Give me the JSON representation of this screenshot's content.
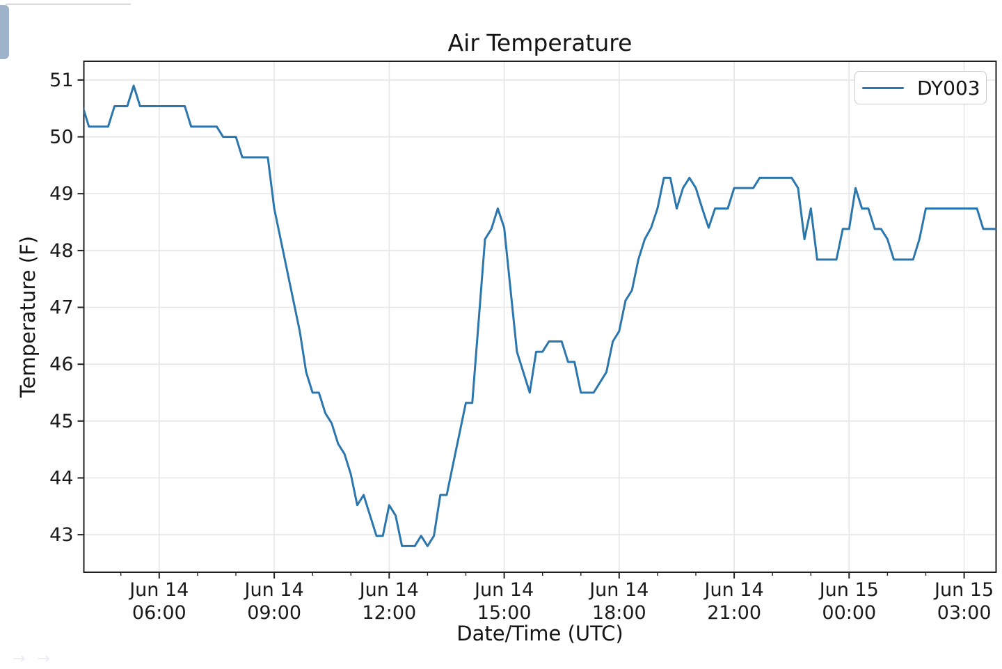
{
  "page": {
    "artifacts": {
      "faint_arrows": "→ →"
    }
  },
  "chart_data": {
    "type": "line",
    "title": "Air Temperature",
    "xlabel": "Date/Time (UTC)",
    "ylabel": "Temperature (F)",
    "grid": true,
    "legend": {
      "position": "upper right"
    },
    "colors": {
      "line": "#2b76ad",
      "grid": "#e6e6e6",
      "spine": "#1f1f1f",
      "text": "#1a1a1a",
      "corner_tab": "#9eb3ca"
    },
    "ylim": [
      42.34,
      51.33
    ],
    "y_ticks": [
      43,
      44,
      45,
      46,
      47,
      48,
      49,
      50,
      51
    ],
    "x_axis": {
      "range_minutes": [
        2,
        1430
      ],
      "minor_tick_every_minutes": 60,
      "ticks": [
        {
          "minute": 120,
          "line1": "Jun 14",
          "line2": "06:00"
        },
        {
          "minute": 300,
          "line1": "Jun 14",
          "line2": "09:00"
        },
        {
          "minute": 480,
          "line1": "Jun 14",
          "line2": "12:00"
        },
        {
          "minute": 660,
          "line1": "Jun 14",
          "line2": "15:00"
        },
        {
          "minute": 840,
          "line1": "Jun 14",
          "line2": "18:00"
        },
        {
          "minute": 1020,
          "line1": "Jun 14",
          "line2": "21:00"
        },
        {
          "minute": 1200,
          "line1": "Jun 15",
          "line2": "00:00"
        },
        {
          "minute": 1380,
          "line1": "Jun 15",
          "line2": "03:00"
        }
      ]
    },
    "series": [
      {
        "name": "DY003",
        "color": "#2b76ad",
        "x_start_label": "Jun 14 04:00 UTC",
        "start_minute": 0,
        "interval_minutes": 10,
        "values": [
          50.54,
          50.18,
          50.18,
          50.18,
          50.18,
          50.54,
          50.54,
          50.54,
          50.9,
          50.54,
          50.54,
          50.54,
          50.54,
          50.54,
          50.54,
          50.54,
          50.54,
          50.18,
          50.18,
          50.18,
          50.18,
          50.18,
          50.0,
          50.0,
          50.0,
          49.64,
          49.64,
          49.64,
          49.64,
          49.64,
          48.74,
          48.2,
          47.66,
          47.12,
          46.58,
          45.86,
          45.5,
          45.5,
          45.14,
          44.96,
          44.6,
          44.42,
          44.06,
          43.52,
          43.7,
          43.34,
          42.98,
          42.98,
          43.52,
          43.34,
          42.8,
          42.8,
          42.8,
          42.98,
          42.8,
          42.98,
          43.7,
          43.7,
          44.24,
          44.78,
          45.32,
          45.32,
          46.76,
          48.2,
          48.38,
          48.74,
          48.4,
          47.3,
          46.22,
          45.86,
          45.5,
          46.22,
          46.22,
          46.4,
          46.4,
          46.4,
          46.04,
          46.04,
          45.5,
          45.5,
          45.5,
          45.68,
          45.86,
          46.4,
          46.58,
          47.12,
          47.3,
          47.84,
          48.2,
          48.4,
          48.74,
          49.28,
          49.28,
          48.74,
          49.1,
          49.28,
          49.1,
          48.74,
          48.4,
          48.74,
          48.74,
          48.74,
          49.1,
          49.1,
          49.1,
          49.1,
          49.28,
          49.28,
          49.28,
          49.28,
          49.28,
          49.28,
          49.1,
          48.2,
          48.74,
          47.84,
          47.84,
          47.84,
          47.84,
          48.38,
          48.38,
          49.1,
          48.74,
          48.74,
          48.38,
          48.38,
          48.2,
          47.84,
          47.84,
          47.84,
          47.84,
          48.2,
          48.74,
          48.74,
          48.74,
          48.74,
          48.74,
          48.74,
          48.74,
          48.74,
          48.74,
          48.38,
          48.38,
          48.38
        ]
      }
    ]
  }
}
